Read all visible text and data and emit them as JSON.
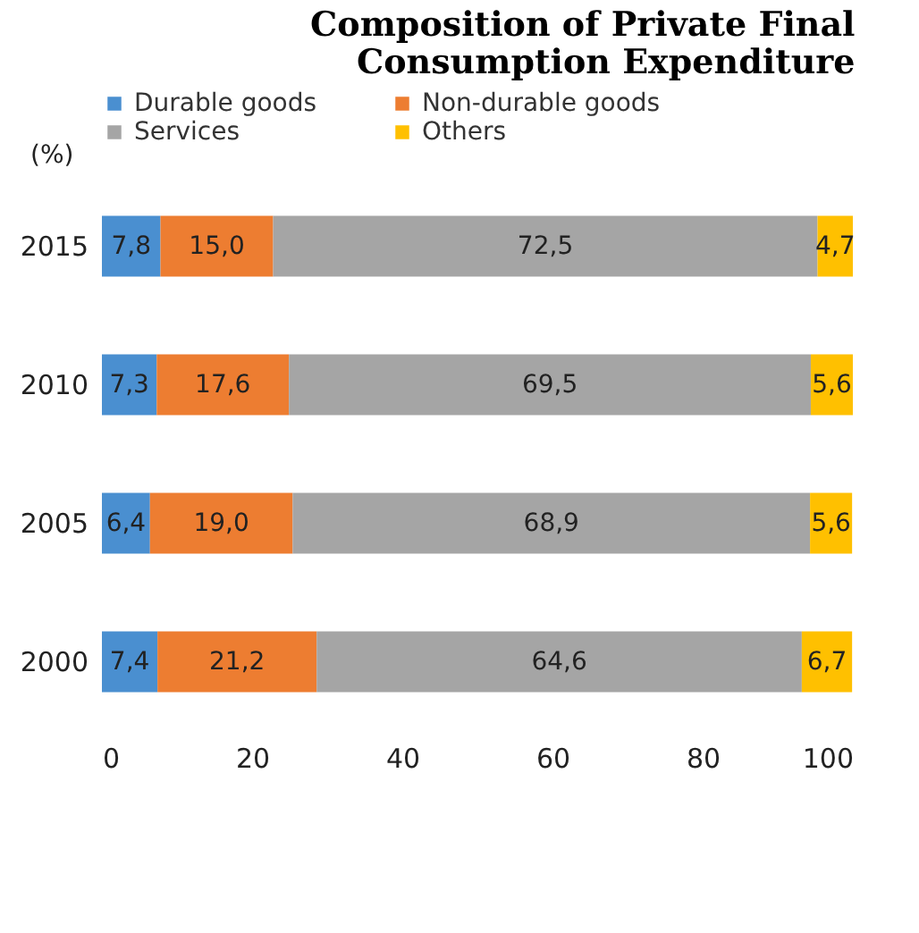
{
  "chart_data": {
    "type": "bar",
    "orientation": "horizontal",
    "stacked": true,
    "title": "Composition of Private Final\nConsumption Expenditure",
    "xlabel": "(%)",
    "categories": [
      "2015",
      "2010",
      "2005",
      "2000"
    ],
    "series": [
      {
        "name": "Durable goods",
        "color": "#4a8fd0",
        "values": [
          7.8,
          7.3,
          6.4,
          7.4
        ],
        "value_labels": [
          "7,8",
          "7,3",
          "6,4",
          "7,4"
        ]
      },
      {
        "name": "Non-durable goods",
        "color": "#ed7d31",
        "values": [
          15.0,
          17.6,
          19.0,
          21.2
        ],
        "value_labels": [
          "15,0",
          "17,6",
          "19,0",
          "21,2"
        ]
      },
      {
        "name": "Services",
        "color": "#a5a5a5",
        "values": [
          72.5,
          69.5,
          68.9,
          64.6
        ],
        "value_labels": [
          "72,5",
          "69,5",
          "68,9",
          "64,6"
        ]
      },
      {
        "name": "Others",
        "color": "#ffc000",
        "values": [
          4.7,
          5.6,
          5.6,
          6.7
        ],
        "value_labels": [
          "4,7",
          "5,6",
          "5,6",
          "6,7"
        ]
      }
    ],
    "xlim": [
      0,
      100
    ],
    "xticks": [
      0,
      20,
      40,
      60,
      80,
      100
    ],
    "grid": false,
    "legend": "top left"
  }
}
